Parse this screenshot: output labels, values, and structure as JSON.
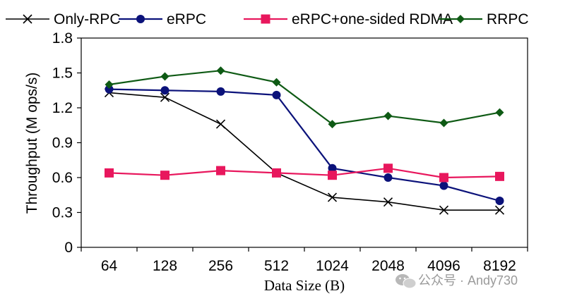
{
  "chart_data": {
    "type": "line",
    "xlabel": "Data Size (B)",
    "ylabel": "Throughput (M ops/s)",
    "categories": [
      "64",
      "128",
      "256",
      "512",
      "1024",
      "2048",
      "4096",
      "8192"
    ],
    "ylim": [
      0,
      1.8
    ],
    "yticks": [
      "0",
      "0.3",
      "0.6",
      "0.9",
      "1.2",
      "1.5",
      "1.8"
    ],
    "grid": false,
    "legend_position": "top",
    "series": [
      {
        "name": "Only-RPC",
        "color": "#000000",
        "marker": "x",
        "values": [
          1.33,
          1.29,
          1.06,
          0.64,
          0.43,
          0.39,
          0.32,
          0.32
        ]
      },
      {
        "name": "eRPC",
        "color": "#0b127a",
        "marker": "circle",
        "values": [
          1.36,
          1.35,
          1.34,
          1.31,
          0.68,
          0.6,
          0.53,
          0.4
        ]
      },
      {
        "name": "eRPC+one-sided RDMA",
        "color": "#e8175d",
        "marker": "square",
        "values": [
          0.64,
          0.62,
          0.66,
          0.64,
          0.62,
          0.68,
          0.6,
          0.61
        ]
      },
      {
        "name": "RRPC",
        "color": "#0e5a14",
        "marker": "diamond",
        "values": [
          1.4,
          1.47,
          1.52,
          1.42,
          1.06,
          1.13,
          1.07,
          1.16
        ]
      }
    ]
  },
  "watermark": {
    "icon": "wechat-icon",
    "text": "公众号 · Andy730"
  }
}
